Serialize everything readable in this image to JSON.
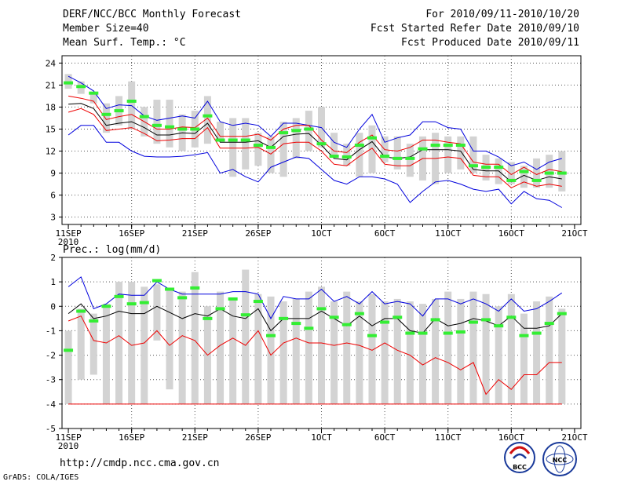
{
  "header": {
    "left": [
      "DERF/NCC/BCC Monthly Forecast",
      "Member Size=40",
      "Mean Surf. Temp.: °C"
    ],
    "right": [
      "For 2010/09/11-2010/10/20",
      "Fcst Started Refer Date 2010/09/10",
      "Fcst Produced Date 2010/09/11"
    ]
  },
  "footer": {
    "url": "http://cmdp.ncc.cma.gov.cn",
    "credit": "GrADS: COLA/IGES"
  },
  "logos": {
    "left": "BCC",
    "right": "NCC"
  },
  "colors": {
    "grey": "#d3d3d3",
    "green": "#33ee33",
    "blue": "#0000dd",
    "red": "#ee0000",
    "black": "#000000"
  },
  "chart_data": [
    {
      "type": "box-line",
      "title": "Mean Surf. Temp.: °C",
      "x": [
        1,
        2,
        3,
        4,
        5,
        6,
        7,
        8,
        9,
        10,
        11,
        12,
        13,
        14,
        15,
        16,
        17,
        18,
        19,
        20,
        21,
        22,
        23,
        24,
        25,
        26,
        27,
        28,
        29,
        30,
        31,
        32,
        33,
        34,
        35,
        36,
        37,
        38,
        39,
        40
      ],
      "xtick_labels": [
        "11SEP",
        "16SEP",
        "21SEP",
        "26SEP",
        "1OCT",
        "6OCT",
        "11OCT",
        "16OCT",
        "21OCT"
      ],
      "xtick_at": [
        1,
        6,
        11,
        16,
        21,
        26,
        31,
        36,
        41
      ],
      "year_label": "2010",
      "ylim": [
        2,
        25
      ],
      "yticks": [
        3,
        6,
        9,
        12,
        15,
        18,
        21,
        24
      ],
      "box_low": [
        20.5,
        19.8,
        18.5,
        14.5,
        15.5,
        15.0,
        14.0,
        13.0,
        12.5,
        12.0,
        12.5,
        13.0,
        13.5,
        8.5,
        9.5,
        10.0,
        9.0,
        8.5,
        11.0,
        12.0,
        12.5,
        11.5,
        10.0,
        8.5,
        9.0,
        10.5,
        9.5,
        8.5,
        8.0,
        7.5,
        9.0,
        9.5,
        9.0,
        8.0,
        7.5,
        7.5,
        7.0,
        7.0,
        7.0,
        6.5
      ],
      "box_high": [
        22.5,
        21.5,
        20.0,
        18.5,
        19.5,
        21.5,
        18.0,
        19.0,
        19.0,
        17.0,
        17.5,
        19.5,
        16.0,
        16.5,
        16.5,
        14.5,
        14.0,
        16.0,
        16.5,
        17.5,
        18.0,
        14.5,
        13.0,
        14.5,
        15.5,
        14.0,
        14.0,
        13.0,
        14.0,
        14.5,
        14.0,
        14.0,
        14.0,
        11.5,
        11.0,
        10.5,
        10.0,
        11.0,
        11.5,
        12.0
      ],
      "green": [
        21.3,
        20.8,
        19.9,
        17.0,
        17.5,
        18.8,
        16.7,
        15.5,
        15.3,
        15.0,
        15.0,
        16.8,
        13.5,
        13.5,
        13.5,
        12.8,
        12.5,
        14.5,
        14.8,
        15.0,
        13.0,
        11.3,
        11.2,
        12.8,
        13.8,
        11.3,
        11.0,
        11.0,
        12.3,
        12.8,
        12.8,
        12.8,
        10.0,
        9.8,
        9.8,
        8.0,
        9.2,
        8.0,
        9.0,
        9.0
      ],
      "series": [
        {
          "name": "max",
          "color": "blue",
          "values": [
            22.2,
            21.3,
            20.2,
            17.8,
            18.3,
            18.2,
            16.8,
            16.2,
            16.5,
            16.8,
            16.5,
            18.8,
            16.0,
            15.5,
            15.8,
            15.5,
            14.0,
            15.8,
            15.8,
            15.5,
            15.2,
            13.2,
            12.5,
            15.0,
            17.0,
            13.2,
            13.8,
            14.2,
            16.0,
            16.0,
            15.2,
            15.0,
            12.0,
            12.0,
            11.2,
            10.0,
            10.5,
            9.5,
            10.5,
            11.0
          ]
        },
        {
          "name": "mean+sd",
          "color": "red",
          "values": [
            19.5,
            19.2,
            18.8,
            16.3,
            16.7,
            17.0,
            16.0,
            15.0,
            15.0,
            15.3,
            15.2,
            16.5,
            14.0,
            14.0,
            14.0,
            14.3,
            13.5,
            15.0,
            15.5,
            15.5,
            13.5,
            12.0,
            11.8,
            13.2,
            14.2,
            12.2,
            12.0,
            12.5,
            13.5,
            13.5,
            13.2,
            13.0,
            10.5,
            10.2,
            10.2,
            8.8,
            9.8,
            8.8,
            9.5,
            9.2
          ]
        },
        {
          "name": "mean",
          "color": "black",
          "values": [
            18.4,
            18.5,
            17.8,
            15.5,
            15.8,
            16.0,
            15.2,
            14.2,
            14.2,
            14.5,
            14.4,
            15.8,
            13.2,
            13.2,
            13.2,
            13.4,
            12.5,
            14.0,
            14.3,
            14.4,
            12.8,
            11.0,
            10.8,
            12.2,
            13.3,
            11.2,
            11.0,
            11.2,
            12.2,
            12.2,
            12.2,
            12.0,
            9.5,
            9.3,
            9.3,
            7.8,
            8.7,
            8.0,
            8.5,
            8.2
          ]
        },
        {
          "name": "mean-sd",
          "color": "red",
          "values": [
            17.3,
            17.8,
            17.0,
            14.8,
            15.0,
            15.2,
            14.4,
            13.4,
            13.5,
            13.7,
            13.7,
            15.2,
            12.4,
            12.4,
            12.4,
            12.5,
            11.6,
            13.0,
            13.2,
            13.2,
            12.0,
            10.2,
            10.0,
            11.3,
            12.4,
            10.2,
            10.0,
            10.0,
            11.0,
            11.0,
            11.2,
            11.0,
            8.7,
            8.5,
            8.5,
            7.0,
            7.8,
            7.2,
            7.5,
            7.2
          ]
        },
        {
          "name": "min",
          "color": "blue",
          "values": [
            14.2,
            15.5,
            15.5,
            13.2,
            13.2,
            12.0,
            11.3,
            11.2,
            11.2,
            11.3,
            11.5,
            11.8,
            9.0,
            9.5,
            8.5,
            7.8,
            9.8,
            10.5,
            11.2,
            11.0,
            9.5,
            8.0,
            7.5,
            8.5,
            8.5,
            8.2,
            7.5,
            5.0,
            6.5,
            7.8,
            8.0,
            7.5,
            6.8,
            6.5,
            6.8,
            4.8,
            6.5,
            5.5,
            5.3,
            4.3
          ]
        }
      ]
    },
    {
      "type": "box-line",
      "title": "Prec.: log(mm/d)",
      "x": [
        1,
        2,
        3,
        4,
        5,
        6,
        7,
        8,
        9,
        10,
        11,
        12,
        13,
        14,
        15,
        16,
        17,
        18,
        19,
        20,
        21,
        22,
        23,
        24,
        25,
        26,
        27,
        28,
        29,
        30,
        31,
        32,
        33,
        34,
        35,
        36,
        37,
        38,
        39,
        40
      ],
      "xtick_labels": [
        "11SEP",
        "16SEP",
        "21SEP",
        "26SEP",
        "1OCT",
        "6OCT",
        "11OCT",
        "16OCT",
        "21OCT"
      ],
      "xtick_at": [
        1,
        6,
        11,
        16,
        21,
        26,
        31,
        36,
        41
      ],
      "year_label": "2010",
      "ylim": [
        -5,
        2
      ],
      "yticks": [
        -5,
        -4,
        -3,
        -2,
        -1,
        0,
        1,
        2
      ],
      "box_low": [
        -4,
        -3,
        -2.8,
        -4,
        -4,
        -4,
        -4,
        -1.4,
        -3.4,
        -4,
        -4,
        -4,
        -4,
        -4,
        -4,
        -4,
        -4,
        -4,
        -4,
        -4,
        -4,
        -4,
        -4,
        -4,
        -4,
        -4,
        -4,
        -4,
        -4,
        -4,
        -4,
        -4,
        -4,
        -4,
        -4,
        -4,
        -4,
        -4,
        -4,
        -4
      ],
      "box_high": [
        -1,
        -0.1,
        -0.3,
        0.1,
        1.0,
        1.0,
        0.8,
        0.9,
        0.7,
        0.6,
        1.4,
        0.0,
        0.6,
        0.3,
        1.5,
        0.5,
        0.4,
        0.2,
        0.3,
        0.6,
        0.8,
        0.2,
        0.6,
        0.2,
        0.5,
        0.2,
        0.3,
        0.2,
        0.1,
        0.3,
        0.6,
        0.3,
        0.6,
        0.5,
        0.0,
        0.5,
        -0.3,
        0.2,
        0.4,
        -0.1
      ],
      "green": [
        -1.8,
        -0.2,
        -0.6,
        0.0,
        0.4,
        0.1,
        0.15,
        1.05,
        0.7,
        0.35,
        0.75,
        -0.5,
        -0.1,
        0.3,
        -0.35,
        0.2,
        -1.2,
        -0.5,
        -0.7,
        -0.9,
        -0.1,
        -0.45,
        -0.75,
        -0.3,
        -1.2,
        -0.65,
        -0.45,
        -1.1,
        -1.1,
        -0.55,
        -1.1,
        -1.05,
        -0.65,
        -0.55,
        -0.8,
        -0.45,
        -1.2,
        -1.1,
        -0.7,
        -0.3
      ],
      "series": [
        {
          "name": "max",
          "color": "blue",
          "values": [
            0.8,
            1.2,
            -0.1,
            0.1,
            0.5,
            0.45,
            0.45,
            1.0,
            0.7,
            0.5,
            0.5,
            0.5,
            0.5,
            0.6,
            0.6,
            0.5,
            -0.5,
            0.4,
            0.3,
            0.3,
            0.7,
            0.2,
            0.4,
            0.1,
            0.6,
            0.1,
            0.2,
            0.1,
            -0.4,
            0.3,
            0.3,
            0.1,
            0.3,
            0.1,
            -0.2,
            0.3,
            -0.2,
            -0.1,
            0.2,
            0.55
          ]
        },
        {
          "name": "mean",
          "color": "black",
          "values": [
            -0.3,
            0.1,
            -0.5,
            -0.4,
            -0.2,
            -0.3,
            -0.3,
            0.0,
            -0.25,
            -0.5,
            -0.3,
            -0.4,
            -0.1,
            -0.4,
            -0.5,
            -0.1,
            -1.0,
            -0.5,
            -0.5,
            -0.5,
            -0.2,
            -0.5,
            -0.8,
            -0.4,
            -0.8,
            -0.5,
            -0.5,
            -1.0,
            -1.1,
            -0.5,
            -0.8,
            -0.7,
            -0.5,
            -0.6,
            -0.8,
            -0.4,
            -0.9,
            -0.9,
            -0.8,
            -0.3
          ]
        },
        {
          "name": "min",
          "color": "red",
          "values": [
            -0.6,
            -0.4,
            -1.4,
            -1.5,
            -1.2,
            -1.6,
            -1.5,
            -1.0,
            -1.6,
            -1.2,
            -1.4,
            -2.0,
            -1.6,
            -1.3,
            -1.6,
            -1.0,
            -2.0,
            -1.5,
            -1.3,
            -1.5,
            -1.5,
            -1.6,
            -1.5,
            -1.6,
            -1.8,
            -1.5,
            -1.8,
            -2.0,
            -2.4,
            -2.1,
            -2.3,
            -2.6,
            -2.3,
            -3.6,
            -3.0,
            -3.4,
            -2.8,
            -2.8,
            -2.3,
            -2.3
          ]
        },
        {
          "name": "floor",
          "color": "red",
          "values": [
            -4,
            -4,
            -4,
            -4,
            -4,
            -4,
            -4,
            -4,
            -4,
            -4,
            -4,
            -4,
            -4,
            -4,
            -4,
            -4,
            -4,
            -4,
            -4,
            -4,
            -4,
            -4,
            -4,
            -4,
            -4,
            -4,
            -4,
            -4,
            -4,
            -4,
            -4,
            -4,
            -4,
            -4,
            -4,
            -4,
            -4,
            -4,
            -4,
            -4
          ]
        }
      ]
    }
  ]
}
